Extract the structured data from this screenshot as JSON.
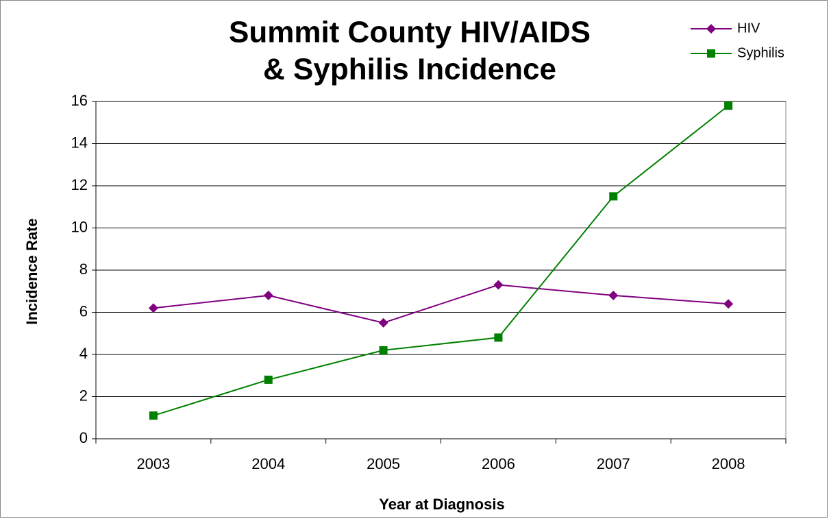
{
  "chart_data": {
    "type": "line",
    "title": [
      "Summit County HIV/AIDS",
      "& Syphilis Incidence"
    ],
    "x_label": "Year at Diagnosis",
    "y_label": "Incidence Rate",
    "categories": [
      "2003",
      "2004",
      "2005",
      "2006",
      "2007",
      "2008"
    ],
    "series": [
      {
        "name": "HIV",
        "color": "#800080",
        "marker": "diamond",
        "values": [
          6.2,
          6.8,
          5.5,
          7.3,
          6.8,
          6.4
        ]
      },
      {
        "name": "Syphilis",
        "color": "#008000",
        "marker": "square",
        "values": [
          1.1,
          2.8,
          4.2,
          4.8,
          11.5,
          15.8
        ]
      }
    ],
    "ylim": [
      0,
      16
    ],
    "yticks": [
      0,
      2,
      4,
      6,
      8,
      10,
      12,
      14,
      16
    ],
    "grid": true,
    "legend": "top-right"
  }
}
